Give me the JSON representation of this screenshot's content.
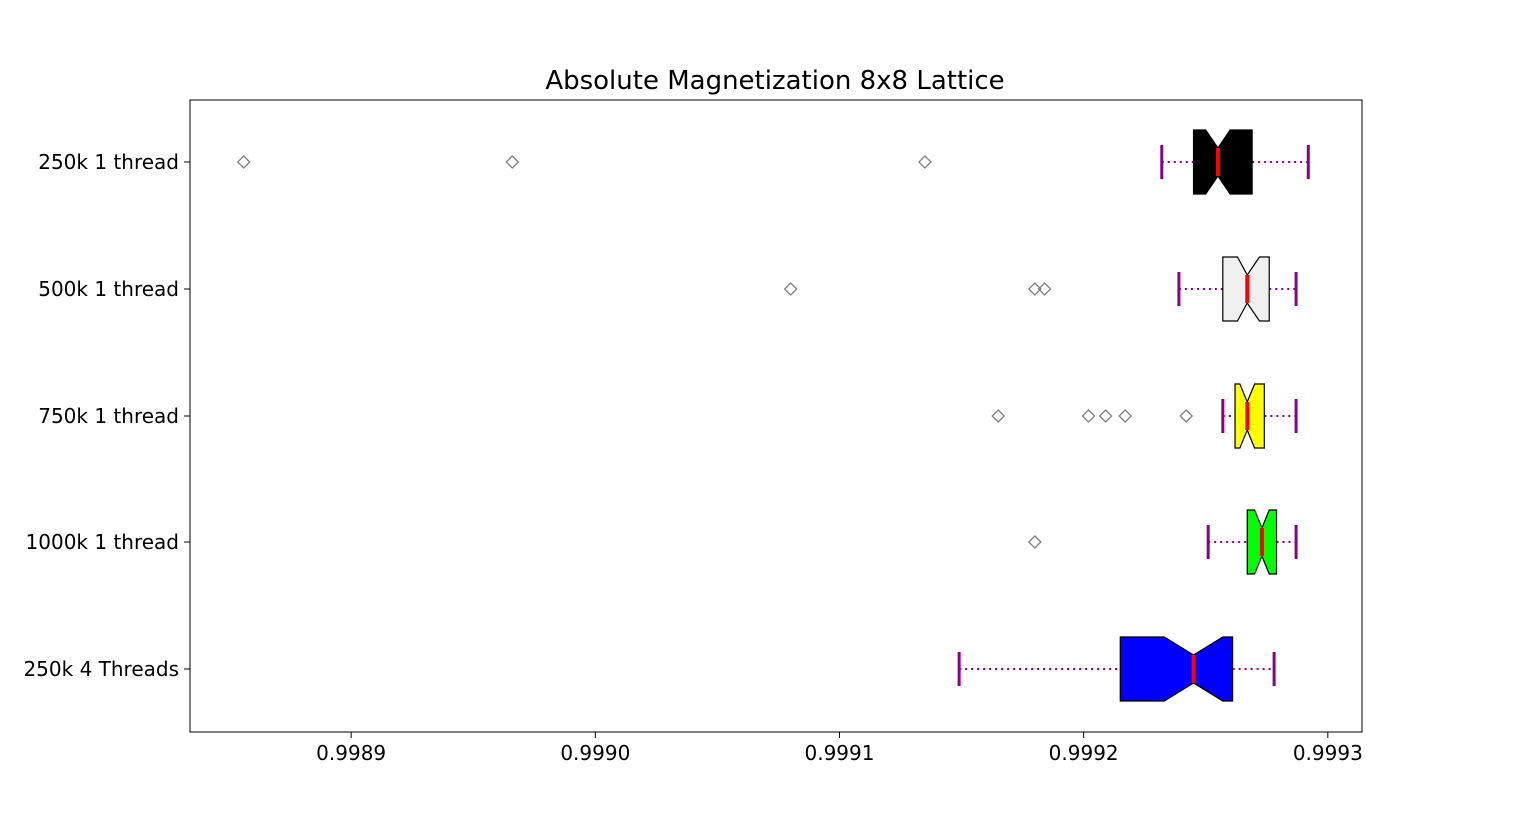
{
  "chart_data": {
    "type": "boxplot",
    "orientation": "horizontal",
    "notched": true,
    "title": "Absolute Magnetization 8x8 Lattice",
    "xlabel": "",
    "ylabel": "",
    "xlim": [
      0.998834,
      0.999314
    ],
    "xticks": [
      0.9989,
      0.999,
      0.9991,
      0.9992,
      0.9993
    ],
    "xtick_labels": [
      "0.9989",
      "0.9990",
      "0.9991",
      "0.9992",
      "0.9993"
    ],
    "grid": false,
    "colors": {
      "whisker": "#8b008b",
      "median": "#ff0000",
      "flier": "#808080"
    },
    "series": [
      {
        "label": "250k 1 thread",
        "color": "#000000",
        "whisker_low": 0.999232,
        "q1": 0.999245,
        "median": 0.999255,
        "q3": 0.999269,
        "whisker_high": 0.999292,
        "notch_low": 0.99925,
        "notch_high": 0.99926,
        "fliers": [
          0.998856,
          0.998966,
          0.999135
        ]
      },
      {
        "label": "500k 1 thread",
        "color": "#f0f0f0",
        "whisker_low": 0.999239,
        "q1": 0.999257,
        "median": 0.999267,
        "q3": 0.999276,
        "whisker_high": 0.999287,
        "notch_low": 0.999263,
        "notch_high": 0.999272,
        "fliers": [
          0.99908,
          0.99918,
          0.999184
        ]
      },
      {
        "label": "750k 1 thread",
        "color": "#ffff00",
        "whisker_low": 0.999257,
        "q1": 0.999262,
        "median": 0.999267,
        "q3": 0.999274,
        "whisker_high": 0.999287,
        "notch_low": 0.999264,
        "notch_high": 0.99927,
        "fliers": [
          0.999165,
          0.999202,
          0.999209,
          0.999217,
          0.999242
        ]
      },
      {
        "label": "1000k 1 thread",
        "color": "#00ff00",
        "whisker_low": 0.999251,
        "q1": 0.999267,
        "median": 0.999273,
        "q3": 0.999279,
        "whisker_high": 0.999287,
        "notch_low": 0.99927,
        "notch_high": 0.999276,
        "fliers": [
          0.99918
        ]
      },
      {
        "label": "250k 4 Threads",
        "color": "#0000ff",
        "whisker_low": 0.999149,
        "q1": 0.999215,
        "median": 0.999245,
        "q3": 0.999261,
        "whisker_high": 0.999278,
        "notch_low": 0.999233,
        "notch_high": 0.999257,
        "fliers": []
      }
    ]
  }
}
